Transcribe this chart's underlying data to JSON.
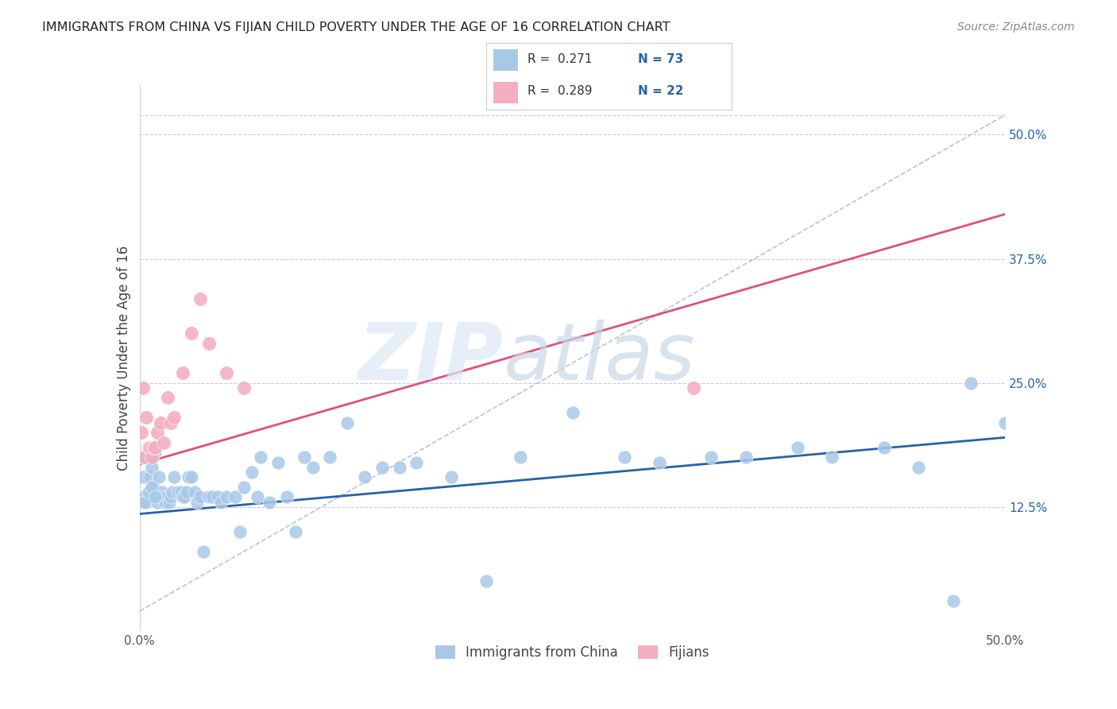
{
  "title": "IMMIGRANTS FROM CHINA VS FIJIAN CHILD POVERTY UNDER THE AGE OF 16 CORRELATION CHART",
  "source": "Source: ZipAtlas.com",
  "ylabel": "Child Poverty Under the Age of 16",
  "right_yticks": [
    "50.0%",
    "37.5%",
    "25.0%",
    "12.5%"
  ],
  "right_ytick_vals": [
    0.5,
    0.375,
    0.25,
    0.125
  ],
  "color_blue": "#a8c8e8",
  "color_pink": "#f4aec0",
  "line_blue": "#2563a8",
  "line_pink": "#e0507a",
  "line_dashed": "#b8c4d4",
  "legend_label1": "Immigrants from China",
  "legend_label2": "Fijians",
  "blue_scatter_x": [
    0.001,
    0.002,
    0.003,
    0.004,
    0.005,
    0.006,
    0.007,
    0.008,
    0.009,
    0.01,
    0.011,
    0.012,
    0.013,
    0.014,
    0.015,
    0.016,
    0.017,
    0.018,
    0.019,
    0.02,
    0.022,
    0.024,
    0.025,
    0.026,
    0.027,
    0.028,
    0.03,
    0.032,
    0.033,
    0.035,
    0.037,
    0.04,
    0.042,
    0.045,
    0.047,
    0.05,
    0.055,
    0.058,
    0.06,
    0.065,
    0.068,
    0.07,
    0.075,
    0.08,
    0.085,
    0.09,
    0.095,
    0.1,
    0.11,
    0.12,
    0.13,
    0.14,
    0.15,
    0.16,
    0.18,
    0.2,
    0.22,
    0.25,
    0.28,
    0.3,
    0.33,
    0.35,
    0.38,
    0.4,
    0.43,
    0.45,
    0.47,
    0.48,
    0.5,
    0.003,
    0.005,
    0.007,
    0.009
  ],
  "blue_scatter_y": [
    0.175,
    0.155,
    0.135,
    0.13,
    0.135,
    0.155,
    0.165,
    0.145,
    0.18,
    0.13,
    0.155,
    0.135,
    0.14,
    0.135,
    0.13,
    0.135,
    0.13,
    0.135,
    0.14,
    0.155,
    0.14,
    0.14,
    0.135,
    0.135,
    0.14,
    0.155,
    0.155,
    0.14,
    0.13,
    0.135,
    0.08,
    0.135,
    0.135,
    0.135,
    0.13,
    0.135,
    0.135,
    0.1,
    0.145,
    0.16,
    0.135,
    0.175,
    0.13,
    0.17,
    0.135,
    0.1,
    0.175,
    0.165,
    0.175,
    0.21,
    0.155,
    0.165,
    0.165,
    0.17,
    0.155,
    0.05,
    0.175,
    0.22,
    0.175,
    0.17,
    0.175,
    0.175,
    0.185,
    0.175,
    0.185,
    0.165,
    0.03,
    0.25,
    0.21,
    0.13,
    0.14,
    0.145,
    0.135
  ],
  "pink_scatter_x": [
    0.001,
    0.002,
    0.003,
    0.004,
    0.005,
    0.006,
    0.007,
    0.008,
    0.009,
    0.01,
    0.012,
    0.014,
    0.016,
    0.018,
    0.02,
    0.025,
    0.03,
    0.035,
    0.04,
    0.05,
    0.06,
    0.32
  ],
  "pink_scatter_y": [
    0.2,
    0.245,
    0.175,
    0.215,
    0.185,
    0.185,
    0.175,
    0.185,
    0.185,
    0.2,
    0.21,
    0.19,
    0.235,
    0.21,
    0.215,
    0.26,
    0.3,
    0.335,
    0.29,
    0.26,
    0.245,
    0.245
  ],
  "blue_line_x": [
    0.0,
    0.5
  ],
  "blue_line_y": [
    0.118,
    0.195
  ],
  "pink_line_x": [
    0.0,
    0.5
  ],
  "pink_line_y": [
    0.168,
    0.42
  ],
  "dashed_line_x": [
    0.0,
    0.5
  ],
  "dashed_line_y": [
    0.02,
    0.52
  ],
  "xlim": [
    0.0,
    0.5
  ],
  "ylim": [
    0.0,
    0.55
  ]
}
